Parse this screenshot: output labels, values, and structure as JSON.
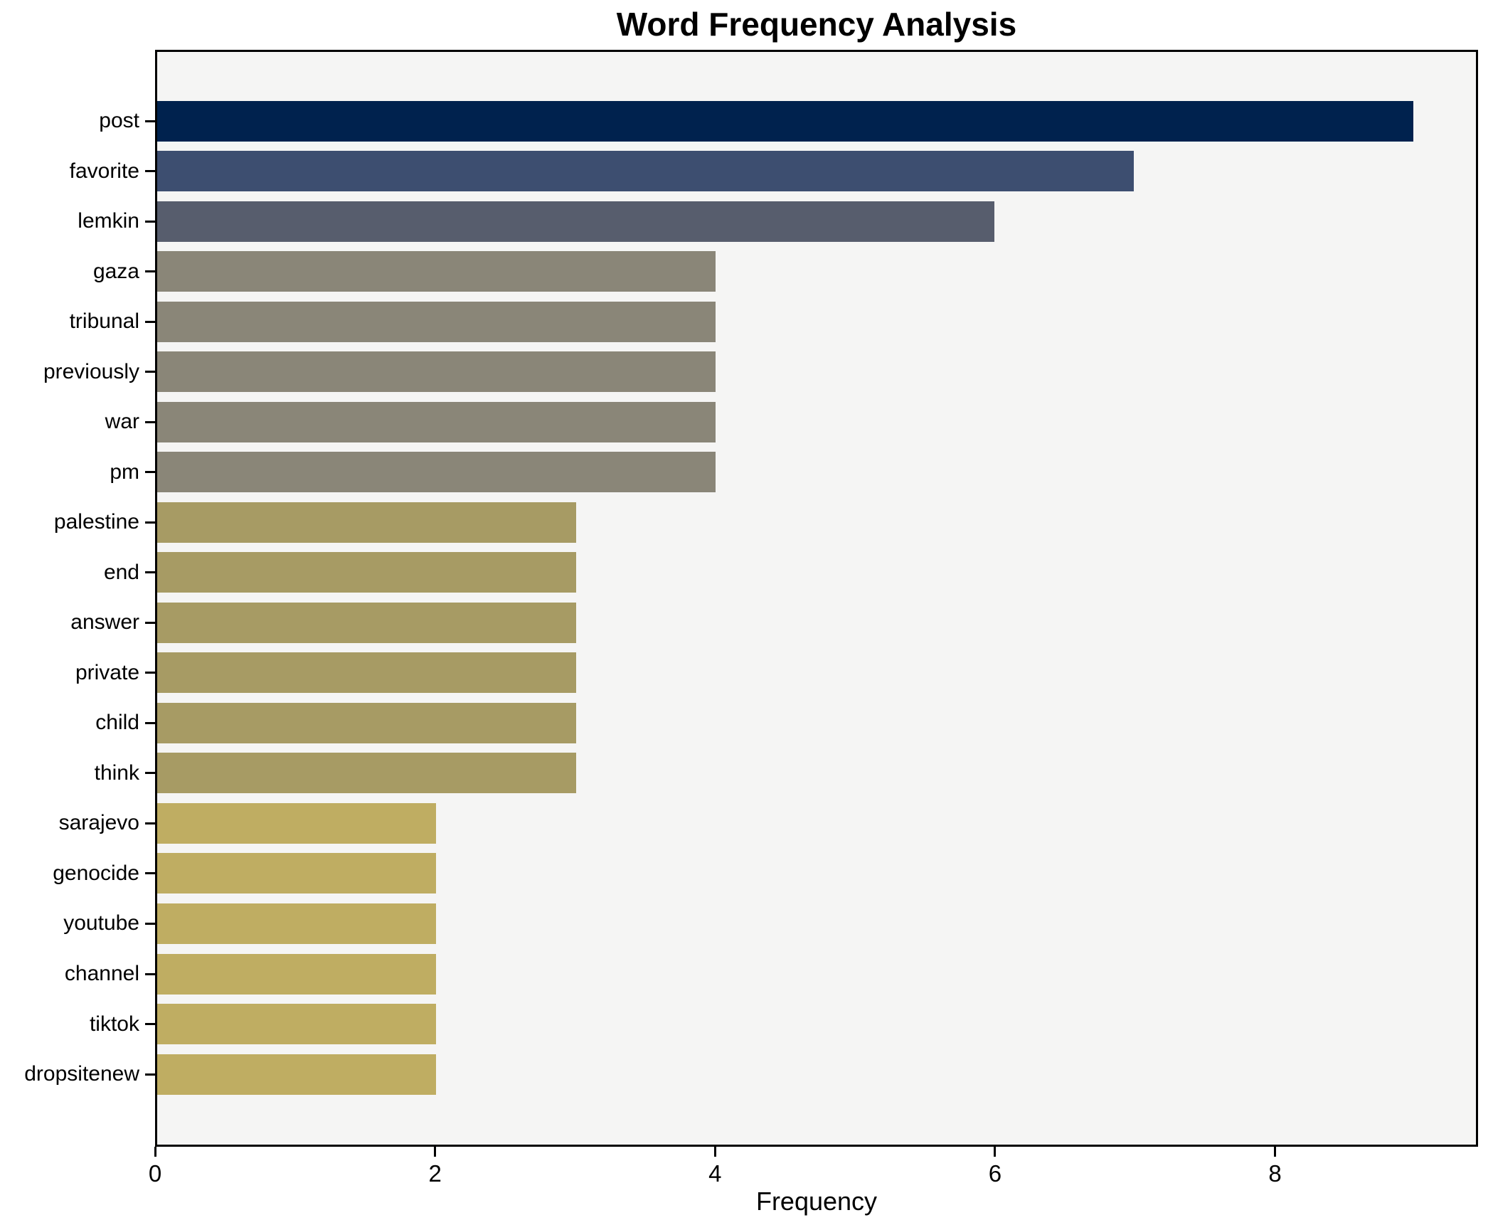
{
  "title": "Word Frequency Analysis",
  "chart_data": {
    "type": "bar",
    "orientation": "horizontal",
    "title": "Word Frequency Analysis",
    "xlabel": "Frequency",
    "ylabel": "",
    "categories": [
      "post",
      "favorite",
      "lemkin",
      "gaza",
      "tribunal",
      "previously",
      "war",
      "pm",
      "palestine",
      "end",
      "answer",
      "private",
      "child",
      "think",
      "sarajevo",
      "genocide",
      "youtube",
      "channel",
      "tiktok",
      "dropsitenew"
    ],
    "values": [
      9,
      7,
      6,
      4,
      4,
      4,
      4,
      4,
      3,
      3,
      3,
      3,
      3,
      3,
      2,
      2,
      2,
      2,
      2,
      2
    ],
    "xlim": [
      0,
      9.45
    ],
    "xticks": [
      0,
      2,
      4,
      6,
      8
    ],
    "xtick_labels": [
      "0",
      "2",
      "4",
      "6",
      "8"
    ],
    "grid": false,
    "legend": null,
    "colormap": "cividis",
    "colors": {
      "plot_background": "#f5f5f4",
      "figure_background": "#ffffff",
      "spine": "#000000",
      "text": "#000000",
      "bar_color_by_value": {
        "9": "#00224e",
        "7": "#3d4e70",
        "6": "#575d6d",
        "4": "#8a8678",
        "3": "#a79b64",
        "2": "#bfad62"
      }
    }
  }
}
